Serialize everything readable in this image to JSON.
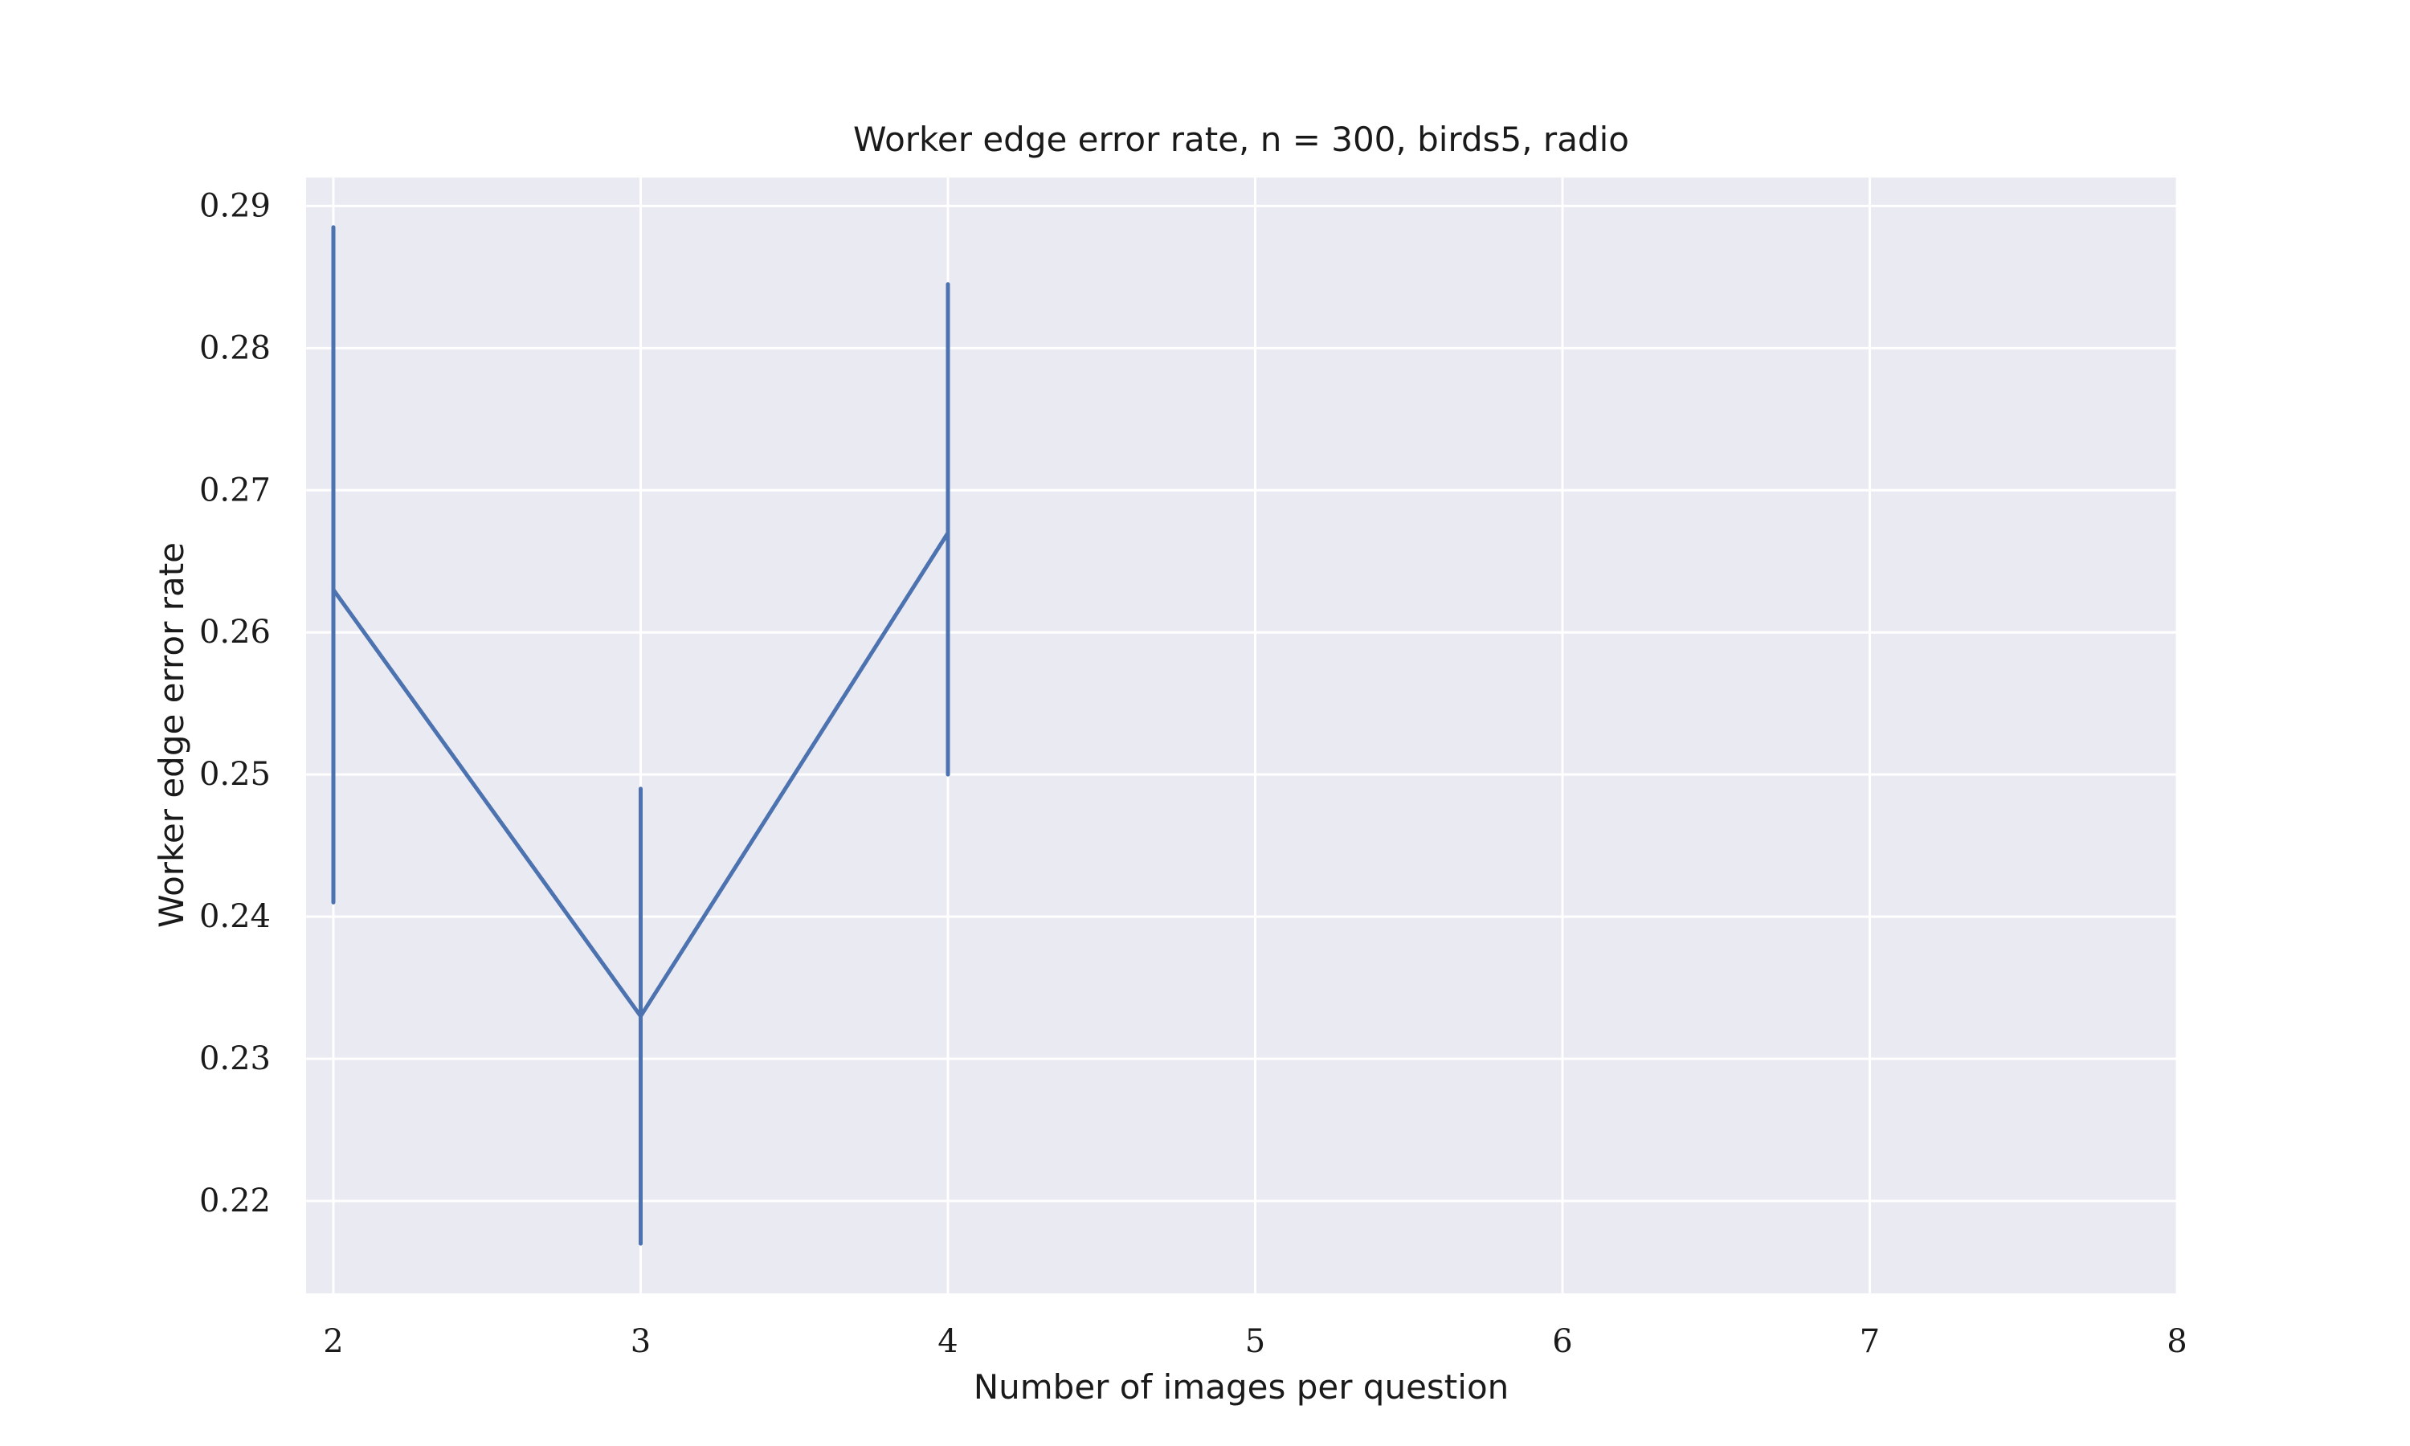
{
  "chart_data": {
    "type": "line",
    "title": "Worker edge error rate, n = 300, birds5, radio",
    "xlabel": "Number of images per question",
    "ylabel": "Worker edge error rate",
    "xlim": [
      2,
      8
    ],
    "ylim": [
      0.2135,
      0.292
    ],
    "x_ticks": [
      "2",
      "3",
      "4",
      "5",
      "6",
      "7",
      "8"
    ],
    "y_ticks": [
      "0.22",
      "0.23",
      "0.24",
      "0.25",
      "0.26",
      "0.27",
      "0.28",
      "0.29"
    ],
    "grid": true,
    "series": [
      {
        "x": [
          2,
          3,
          4
        ],
        "y": [
          0.263,
          0.233,
          0.267
        ],
        "y_lower": [
          0.241,
          0.217,
          0.25
        ],
        "y_upper": [
          0.2885,
          0.249,
          0.2845
        ]
      }
    ],
    "colors": {
      "line": "#4c72b0",
      "plot_background": "#eaeaf2",
      "grid": "#ffffff"
    }
  }
}
